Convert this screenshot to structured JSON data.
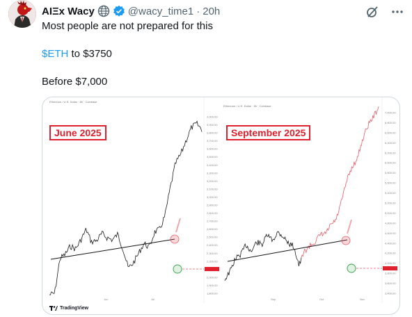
{
  "author": {
    "name": "AIΞx Wacy",
    "handle": "@wacy_time1",
    "separator": "·",
    "time": "20h"
  },
  "tweet": {
    "line1": "Most people are not prepared for this",
    "cashtag": "$ETH",
    "line2_rest": " to $3750",
    "line3": "Before $7,000"
  },
  "icons": {
    "globe": "globe-icon",
    "verified": "verified-badge-icon",
    "grok": "grok-icon",
    "more": "more-icon"
  },
  "colors": {
    "link": "#1d9bf0",
    "label_red": "#e0202c",
    "projection_red": "#e85a66",
    "support_green": "#2e9e44"
  },
  "media": {
    "left_label": "June 2025",
    "right_label": "September 2025",
    "left_header": "Ethereum / U.S. Dollar · 8h · Coinbase",
    "right_header": "Ethereum / U.S. Dollar · 8h · Coinbase",
    "left_xticks": [
      "Jun",
      "Jul"
    ],
    "right_xticks": [
      "Sep",
      "Oct",
      "Nov"
    ],
    "left_yticks": [
      "4,000.00",
      "3,900.00",
      "3,800.00",
      "3,700.00",
      "3,600.00",
      "3,500.00",
      "3,400.00",
      "3,300.00",
      "3,200.00",
      "3,100.00",
      "3,000.00",
      "2,900.00",
      "2,800.00",
      "2,700.00",
      "2,600.00",
      "2,500.00",
      "2,400.00",
      "2,300.00",
      "2,200.00",
      "2,100.00",
      "2,000.00",
      "1,900.00",
      "1,800.00"
    ],
    "right_yticks": [
      "7,000.00",
      "6,800.00",
      "6,600.00",
      "6,400.00",
      "6,200.00",
      "6,000.00",
      "5,800.00",
      "5,600.00",
      "5,400.00",
      "5,200.00",
      "5,000.00",
      "4,800.00",
      "4,600.00",
      "4,400.00",
      "4,200.00",
      "4,000.00",
      "3,800.00",
      "3,600.00",
      "3,400.00"
    ],
    "tradingview": "TradingView"
  }
}
